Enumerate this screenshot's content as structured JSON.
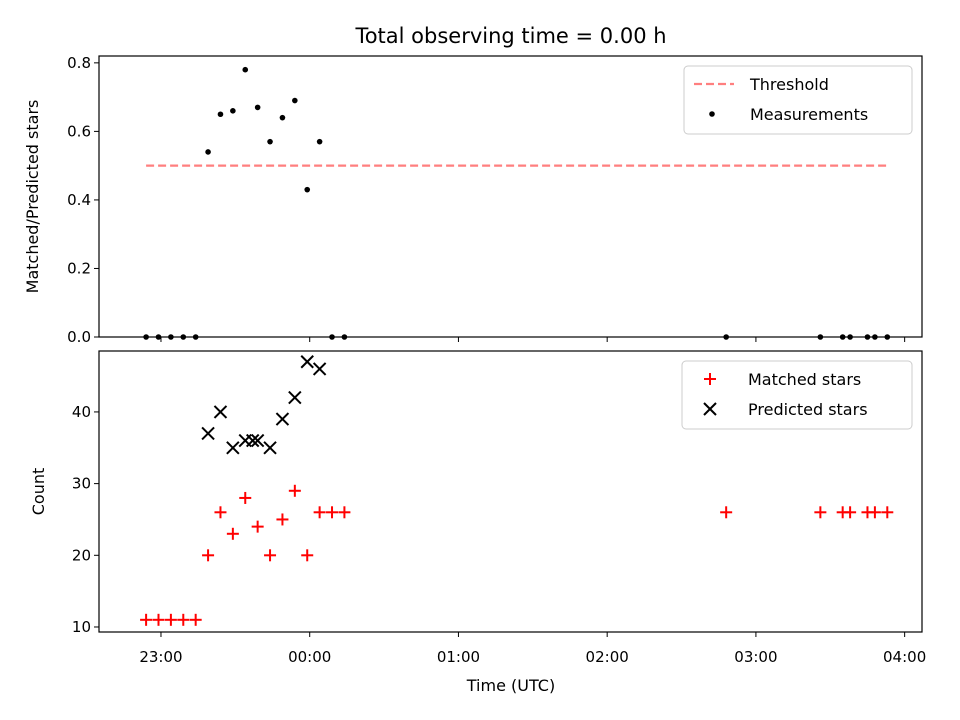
{
  "title": "Total observing time = 0.00 h",
  "xlabel": "Time (UTC)",
  "x_ticks": [
    "23:00",
    "00:00",
    "01:00",
    "02:00",
    "03:00",
    "04:00"
  ],
  "chart_data": [
    {
      "type": "scatter",
      "ylabel": "Matched/Predicted stars",
      "ylim": [
        0,
        0.82
      ],
      "y_ticks": [
        "0.0",
        "0.2",
        "0.4",
        "0.6",
        "0.8"
      ],
      "xlim": [
        "22:35",
        "04:07"
      ],
      "legend_position": "top-right",
      "threshold": {
        "name": "Threshold",
        "color": "#ff7f7f",
        "style": "dashed",
        "y": 0.5,
        "x_range": [
          "22:54",
          "03:53"
        ]
      },
      "series": [
        {
          "name": "Measurements",
          "color": "#000000",
          "marker": "dot",
          "points": [
            [
              "22:54",
              0.0
            ],
            [
              "22:59",
              0.0
            ],
            [
              "23:04",
              0.0
            ],
            [
              "23:09",
              0.0
            ],
            [
              "23:14",
              0.0
            ],
            [
              "23:19",
              0.54
            ],
            [
              "23:24",
              0.65
            ],
            [
              "23:29",
              0.66
            ],
            [
              "23:34",
              0.78
            ],
            [
              "23:39",
              0.67
            ],
            [
              "23:44",
              0.57
            ],
            [
              "23:49",
              0.64
            ],
            [
              "23:54",
              0.69
            ],
            [
              "23:59",
              0.43
            ],
            [
              "00:04",
              0.57
            ],
            [
              "00:09",
              0.0
            ],
            [
              "00:14",
              0.0
            ],
            [
              "02:48",
              0.0
            ],
            [
              "03:26",
              0.0
            ],
            [
              "03:35",
              0.0
            ],
            [
              "03:38",
              0.0
            ],
            [
              "03:45",
              0.0
            ],
            [
              "03:48",
              0.0
            ],
            [
              "03:53",
              0.0
            ]
          ]
        }
      ]
    },
    {
      "type": "scatter",
      "ylabel": "Count",
      "ylim": [
        9.3,
        48.5
      ],
      "y_ticks": [
        "10",
        "20",
        "30",
        "40"
      ],
      "xlim": [
        "22:35",
        "04:07"
      ],
      "legend_position": "top-right",
      "series": [
        {
          "name": "Matched stars",
          "color": "#ff0000",
          "marker": "plus",
          "points": [
            [
              "22:54",
              11
            ],
            [
              "22:59",
              11
            ],
            [
              "23:04",
              11
            ],
            [
              "23:09",
              11
            ],
            [
              "23:14",
              11
            ],
            [
              "23:19",
              20
            ],
            [
              "23:24",
              26
            ],
            [
              "23:29",
              23
            ],
            [
              "23:34",
              28
            ],
            [
              "23:39",
              24
            ],
            [
              "23:44",
              20
            ],
            [
              "23:49",
              25
            ],
            [
              "23:54",
              29
            ],
            [
              "23:59",
              20
            ],
            [
              "00:04",
              26
            ],
            [
              "00:09",
              26
            ],
            [
              "00:14",
              26
            ],
            [
              "02:48",
              26
            ],
            [
              "03:26",
              26
            ],
            [
              "03:35",
              26
            ],
            [
              "03:38",
              26
            ],
            [
              "03:45",
              26
            ],
            [
              "03:48",
              26
            ],
            [
              "03:53",
              26
            ]
          ]
        },
        {
          "name": "Predicted stars",
          "color": "#000000",
          "marker": "x",
          "points": [
            [
              "23:19",
              37
            ],
            [
              "23:24",
              40
            ],
            [
              "23:29",
              35
            ],
            [
              "23:34",
              36
            ],
            [
              "23:37",
              36
            ],
            [
              "23:39",
              36
            ],
            [
              "23:44",
              35
            ],
            [
              "23:49",
              39
            ],
            [
              "23:54",
              42
            ],
            [
              "23:59",
              47
            ],
            [
              "00:04",
              46
            ]
          ]
        }
      ]
    }
  ]
}
